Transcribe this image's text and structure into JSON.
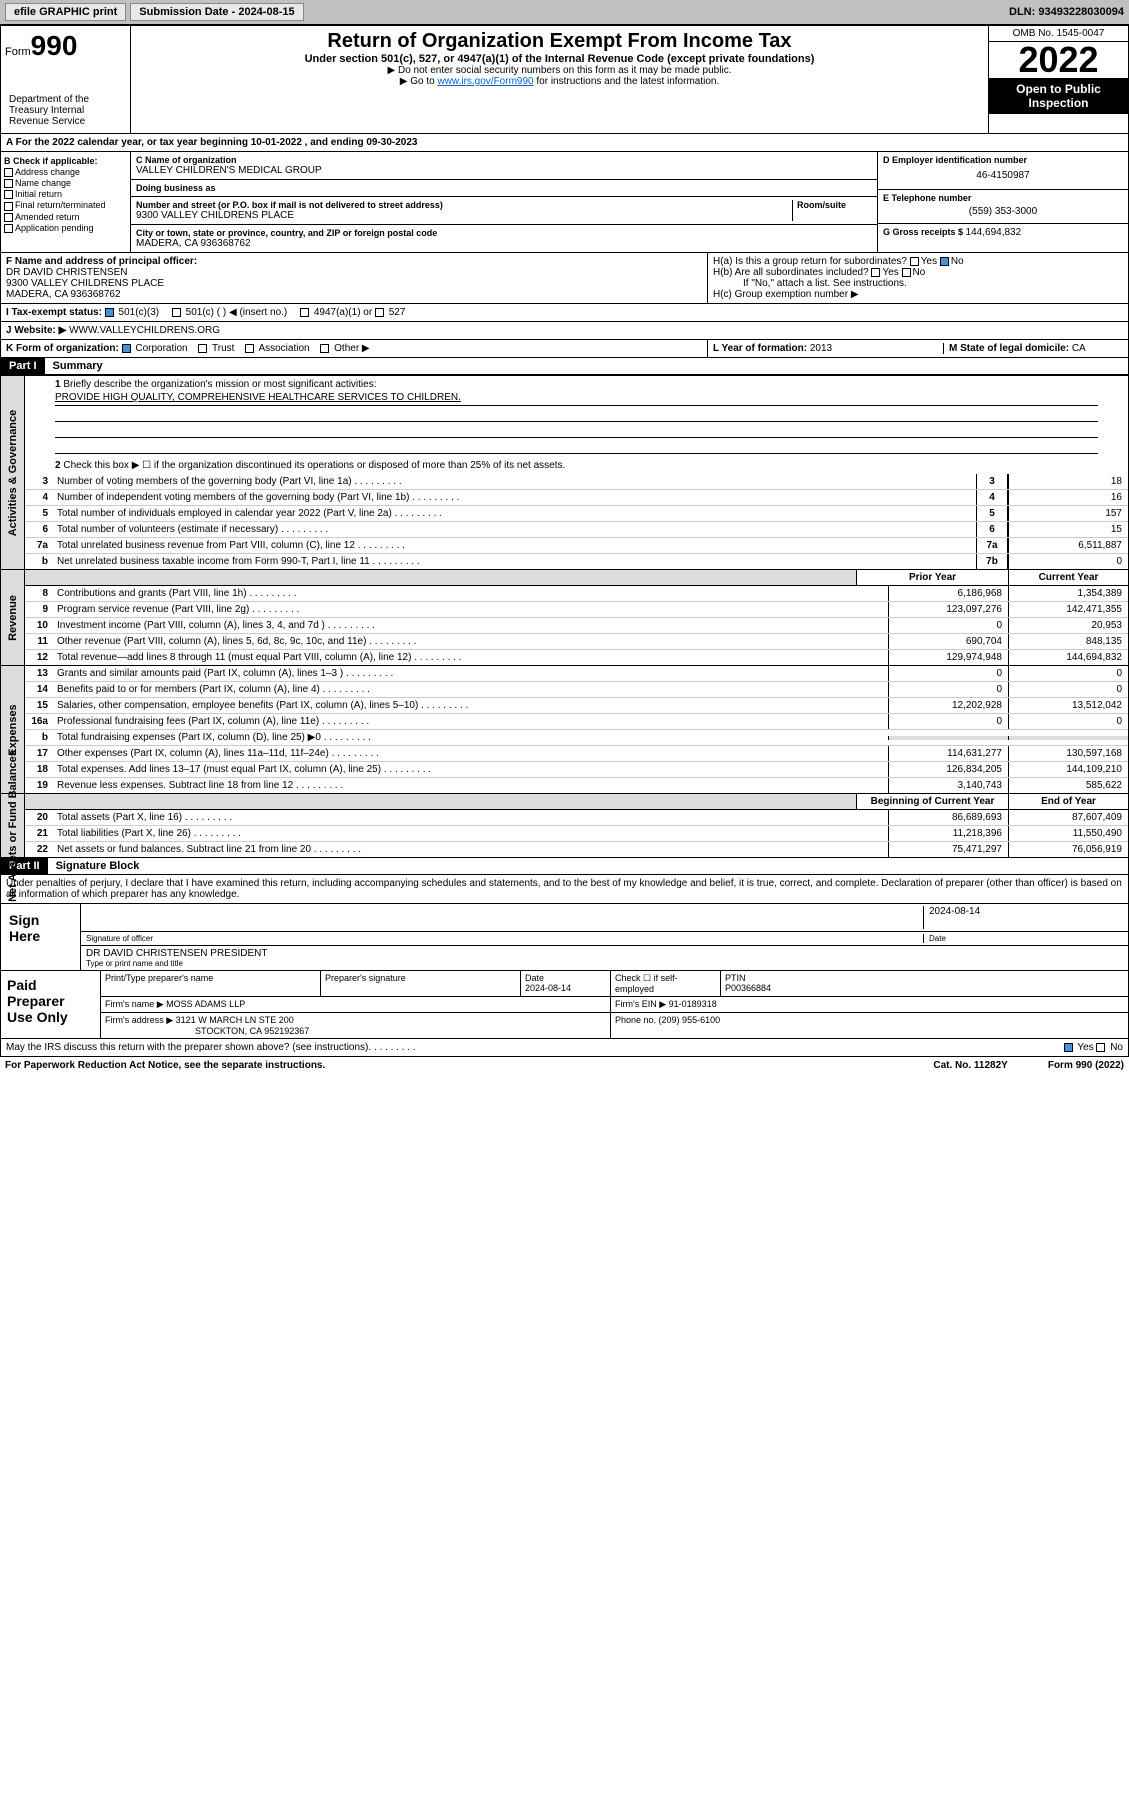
{
  "topbar": {
    "efile": "efile GRAPHIC print",
    "subdate_lbl": "Submission Date - ",
    "subdate": "2024-08-15",
    "dln_lbl": "DLN: ",
    "dln": "93493228030094"
  },
  "header": {
    "form_lbl": "Form",
    "form_num": "990",
    "dept": "Department of the Treasury Internal Revenue Service",
    "title": "Return of Organization Exempt From Income Tax",
    "sub1": "Under section 501(c), 527, or 4947(a)(1) of the Internal Revenue Code (except private foundations)",
    "sub2": "▶ Do not enter social security numbers on this form as it may be made public.",
    "sub3": "▶ Go to ",
    "link": "www.irs.gov/Form990",
    "sub3b": " for instructions and the latest information.",
    "omb": "OMB No. 1545-0047",
    "year": "2022",
    "inspect": "Open to Public Inspection"
  },
  "rowA": "For the 2022 calendar year, or tax year beginning 10-01-2022     , and ending 09-30-2023",
  "colB": {
    "hdr": "B Check if applicable:",
    "items": [
      "Address change",
      "Name change",
      "Initial return",
      "Final return/terminated",
      "Amended return",
      "Application pending"
    ]
  },
  "colC": {
    "name_lbl": "C Name of organization",
    "name": "VALLEY CHILDREN'S MEDICAL GROUP",
    "dba_lbl": "Doing business as",
    "dba": "",
    "addr_lbl": "Number and street (or P.O. box if mail is not delivered to street address)",
    "room_lbl": "Room/suite",
    "addr": "9300 VALLEY CHILDRENS PLACE",
    "city_lbl": "City or town, state or province, country, and ZIP or foreign postal code",
    "city": "MADERA, CA  936368762"
  },
  "colD": {
    "ein_lbl": "D Employer identification number",
    "ein": "46-4150987",
    "tel_lbl": "E Telephone number",
    "tel": "(559) 353-3000",
    "gross_lbl": "G Gross receipts $ ",
    "gross": "144,694,832"
  },
  "rowF": {
    "lbl": "F  Name and address of principal officer:",
    "name": "DR DAVID CHRISTENSEN",
    "addr": "9300 VALLEY CHILDRENS PLACE",
    "city": "MADERA, CA  936368762"
  },
  "rowH": {
    "ha": "H(a)  Is this a group return for subordinates?",
    "hb": "H(b)  Are all subordinates included?",
    "hbno": "If \"No,\" attach a list. See instructions.",
    "hc": "H(c)  Group exemption number ▶",
    "yes": "Yes",
    "no": "No"
  },
  "rowI": {
    "lbl": "I    Tax-exempt status:",
    "opts": [
      "501(c)(3)",
      "501(c) (  ) ◀ (insert no.)",
      "4947(a)(1) or",
      "527"
    ]
  },
  "rowJ": {
    "lbl": "J    Website: ▶",
    "val": " WWW.VALLEYCHILDRENS.ORG"
  },
  "rowK": {
    "lbl": "K Form of organization:",
    "opts": [
      "Corporation",
      "Trust",
      "Association",
      "Other ▶"
    ]
  },
  "rowL": {
    "lbl": "L Year of formation: ",
    "val": "2013",
    "m_lbl": "M State of legal domicile: ",
    "m_val": "CA"
  },
  "part1": {
    "hdr": "Part I",
    "title": "Summary"
  },
  "governance": {
    "vl": "Activities & Governance",
    "l1": "Briefly describe the organization's mission or most significant activities:",
    "l1v": "PROVIDE HIGH QUALITY, COMPREHENSIVE HEALTHCARE SERVICES TO CHILDREN.",
    "l2": "Check this box ▶ ☐  if the organization discontinued its operations or disposed of more than 25% of its net assets.",
    "rows": [
      {
        "n": "3",
        "d": "Number of voting members of the governing body (Part VI, line 1a)",
        "b": "3",
        "v": "18"
      },
      {
        "n": "4",
        "d": "Number of independent voting members of the governing body (Part VI, line 1b)",
        "b": "4",
        "v": "16"
      },
      {
        "n": "5",
        "d": "Total number of individuals employed in calendar year 2022 (Part V, line 2a)",
        "b": "5",
        "v": "157"
      },
      {
        "n": "6",
        "d": "Total number of volunteers (estimate if necessary)",
        "b": "6",
        "v": "15"
      },
      {
        "n": "7a",
        "d": "Total unrelated business revenue from Part VIII, column (C), line 12",
        "b": "7a",
        "v": "6,511,887"
      },
      {
        "n": "b",
        "d": "Net unrelated business taxable income from Form 990-T, Part I, line 11",
        "b": "7b",
        "v": "0"
      }
    ]
  },
  "revenue": {
    "vl": "Revenue",
    "h1": "Prior Year",
    "h2": "Current Year",
    "rows": [
      {
        "n": "8",
        "d": "Contributions and grants (Part VIII, line 1h)",
        "p": "6,186,968",
        "c": "1,354,389"
      },
      {
        "n": "9",
        "d": "Program service revenue (Part VIII, line 2g)",
        "p": "123,097,276",
        "c": "142,471,355"
      },
      {
        "n": "10",
        "d": "Investment income (Part VIII, column (A), lines 3, 4, and 7d )",
        "p": "0",
        "c": "20,953"
      },
      {
        "n": "11",
        "d": "Other revenue (Part VIII, column (A), lines 5, 6d, 8c, 9c, 10c, and 11e)",
        "p": "690,704",
        "c": "848,135"
      },
      {
        "n": "12",
        "d": "Total revenue—add lines 8 through 11 (must equal Part VIII, column (A), line 12)",
        "p": "129,974,948",
        "c": "144,694,832"
      }
    ]
  },
  "expenses": {
    "vl": "Expenses",
    "rows": [
      {
        "n": "13",
        "d": "Grants and similar amounts paid (Part IX, column (A), lines 1–3 )",
        "p": "0",
        "c": "0"
      },
      {
        "n": "14",
        "d": "Benefits paid to or for members (Part IX, column (A), line 4)",
        "p": "0",
        "c": "0"
      },
      {
        "n": "15",
        "d": "Salaries, other compensation, employee benefits (Part IX, column (A), lines 5–10)",
        "p": "12,202,928",
        "c": "13,512,042"
      },
      {
        "n": "16a",
        "d": "Professional fundraising fees (Part IX, column (A), line 11e)",
        "p": "0",
        "c": "0"
      },
      {
        "n": "b",
        "d": "Total fundraising expenses (Part IX, column (D), line 25) ▶0",
        "p": "",
        "c": "",
        "gray": true
      },
      {
        "n": "17",
        "d": "Other expenses (Part IX, column (A), lines 11a–11d, 11f–24e)",
        "p": "114,631,277",
        "c": "130,597,168"
      },
      {
        "n": "18",
        "d": "Total expenses. Add lines 13–17 (must equal Part IX, column (A), line 25)",
        "p": "126,834,205",
        "c": "144,109,210"
      },
      {
        "n": "19",
        "d": "Revenue less expenses. Subtract line 18 from line 12",
        "p": "3,140,743",
        "c": "585,622"
      }
    ]
  },
  "netassets": {
    "vl": "Net Assets or Fund Balances",
    "h1": "Beginning of Current Year",
    "h2": "End of Year",
    "rows": [
      {
        "n": "20",
        "d": "Total assets (Part X, line 16)",
        "p": "86,689,693",
        "c": "87,607,409"
      },
      {
        "n": "21",
        "d": "Total liabilities (Part X, line 26)",
        "p": "11,218,396",
        "c": "11,550,490"
      },
      {
        "n": "22",
        "d": "Net assets or fund balances. Subtract line 21 from line 20",
        "p": "75,471,297",
        "c": "76,056,919"
      }
    ]
  },
  "part2": {
    "hdr": "Part II",
    "title": "Signature Block",
    "decl": "Under penalties of perjury, I declare that I have examined this return, including accompanying schedules and statements, and to the best of my knowledge and belief, it is true, correct, and complete. Declaration of preparer (other than officer) is based on all information of which preparer has any knowledge."
  },
  "sign": {
    "lbl": "Sign Here",
    "sig_lbl": "Signature of officer",
    "date_lbl": "Date",
    "date": "2024-08-14",
    "name": "DR DAVID CHRISTENSEN  PRESIDENT",
    "name_lbl": "Type or print name and title"
  },
  "prep": {
    "lbl": "Paid Preparer Use Only",
    "h": [
      "Print/Type preparer's name",
      "Preparer's signature",
      "Date",
      "Check ☐ if self-employed",
      "PTIN"
    ],
    "date": "2024-08-14",
    "ptin": "P00366884",
    "firm_lbl": "Firm's name      ▶",
    "firm": "MOSS ADAMS LLP",
    "ein_lbl": "Firm's EIN ▶",
    "ein": "91-0189318",
    "addr_lbl": "Firm's address ▶",
    "addr": "3121 W MARCH LN STE 200",
    "city": "STOCKTON, CA  952192367",
    "ph_lbl": "Phone no. ",
    "ph": "(209) 955-6100"
  },
  "footer": {
    "q": "May the IRS discuss this return with the preparer shown above? (see instructions)",
    "yes": "Yes",
    "no": "No",
    "pra": "For Paperwork Reduction Act Notice, see the separate instructions.",
    "cat": "Cat. No. 11282Y",
    "form": "Form 990 (2022)"
  }
}
